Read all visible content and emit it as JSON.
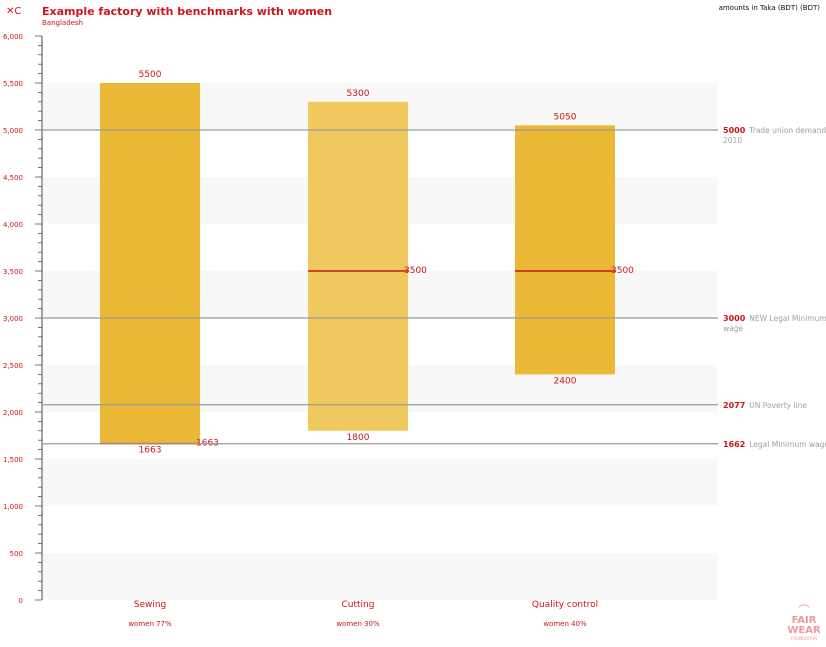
{
  "header": {
    "menu_icon_text": "✕C",
    "title": "Example factory with benchmarks with women",
    "subtitle": "Bangladesh",
    "currency_note": "amounts in Taka (BDT) (BDT)"
  },
  "logo": {
    "line1": "FAIR",
    "line2": "WEAR",
    "line3": "FOUNDATION"
  },
  "colors": {
    "accent": "#d0141c",
    "bar_dark": "#ebb935",
    "bar_light": "#f0c95e",
    "band": "#f8f8f8",
    "benchmark_line": "#9a9a9a"
  },
  "chart_data": {
    "type": "bar",
    "subtype": "floating-range",
    "ylim": [
      0,
      6000
    ],
    "y_major_ticks": [
      0,
      500,
      1000,
      1500,
      2000,
      2500,
      3000,
      3500,
      4000,
      4500,
      5000,
      5500,
      6000
    ],
    "y_tick_labels": [
      "0",
      "500",
      "1,000",
      "1,500",
      "2,000",
      "2,500",
      "3,000",
      "3,500",
      "4,000",
      "4,500",
      "5,000",
      "5,500",
      "6,000"
    ],
    "y_minor_step": 100,
    "grid_bands": true,
    "categories": [
      {
        "label": "Sewing",
        "sublabel": "women 77%",
        "low": 1663,
        "high": 5500,
        "low_label": "1663",
        "high_label": "5500",
        "marker": 1663,
        "marker_label": "1663",
        "shade": "dark"
      },
      {
        "label": "Cutting",
        "sublabel": "women 30%",
        "low": 1800,
        "high": 5300,
        "low_label": "1800",
        "high_label": "5300",
        "marker": 3500,
        "marker_label": "3500",
        "shade": "light"
      },
      {
        "label": "Quality control",
        "sublabel": "women 40%",
        "low": 2400,
        "high": 5050,
        "low_label": "2400",
        "high_label": "5050",
        "marker": 3500,
        "marker_label": "3500",
        "shade": "dark"
      }
    ],
    "benchmarks": [
      {
        "value": 5000,
        "value_label": "5000",
        "text": "Trade union demand",
        "text2": "2010"
      },
      {
        "value": 3000,
        "value_label": "3000",
        "text": "NEW Legal Minimum",
        "text2": "wage"
      },
      {
        "value": 2077,
        "value_label": "2077",
        "text": "UN Poverty line",
        "text2": ""
      },
      {
        "value": 1662,
        "value_label": "1662",
        "text": "Legal Minimum wage",
        "text2": ""
      }
    ]
  }
}
